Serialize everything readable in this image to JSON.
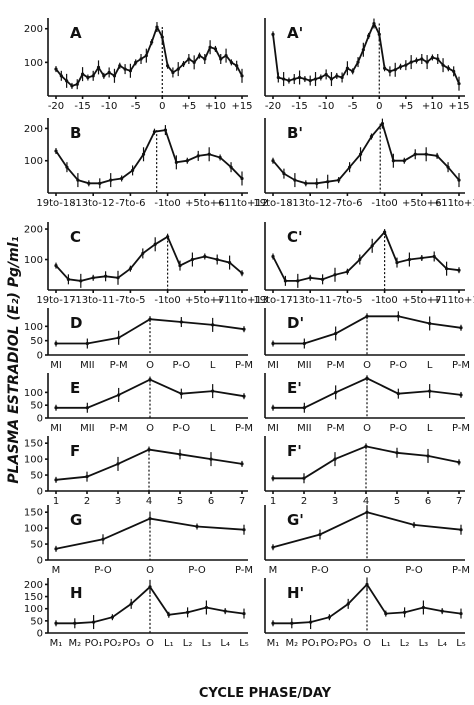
{
  "figure": {
    "ylabel": "PLASMA ESTRADIOL (E₂) Pg/ml₁",
    "xlabel": "CYCLE PHASE/DAY"
  },
  "chart_data": [
    {
      "type": "line",
      "panel": "A",
      "x": [
        -20,
        -19,
        -18,
        -17,
        -16,
        -15,
        -14,
        -13,
        -12,
        -11,
        -10,
        -9,
        -8,
        -7,
        -6,
        -5,
        -4,
        -3,
        -2,
        -1,
        0,
        1,
        2,
        3,
        4,
        5,
        6,
        7,
        8,
        9,
        10,
        11,
        12,
        13,
        14,
        15
      ],
      "values": [
        80,
        60,
        45,
        30,
        35,
        65,
        55,
        60,
        85,
        60,
        70,
        60,
        90,
        80,
        75,
        100,
        110,
        120,
        160,
        205,
        175,
        90,
        70,
        80,
        95,
        110,
        100,
        120,
        110,
        145,
        140,
        110,
        120,
        100,
        90,
        60
      ],
      "xticks": [
        "-20",
        "-15",
        "-10",
        "-5",
        "0",
        "+5",
        "+10",
        "+15"
      ],
      "yticks": [
        "100",
        "200"
      ],
      "ylim": [
        0,
        220
      ],
      "xmark": 0
    },
    {
      "type": "line",
      "panel": "A'",
      "x": [
        -20,
        -19,
        -18,
        -17,
        -16,
        -15,
        -14,
        -13,
        -12,
        -11,
        -10,
        -9,
        -8,
        -7,
        -6,
        -5,
        -4,
        -3,
        -2,
        -1,
        0,
        1,
        2,
        3,
        4,
        5,
        6,
        7,
        8,
        9,
        10,
        11,
        12,
        13,
        14,
        15
      ],
      "values": [
        200,
        60,
        55,
        50,
        55,
        60,
        55,
        50,
        55,
        60,
        70,
        55,
        65,
        60,
        90,
        80,
        110,
        150,
        195,
        235,
        200,
        90,
        80,
        85,
        95,
        100,
        110,
        115,
        120,
        110,
        125,
        120,
        100,
        90,
        80,
        40
      ],
      "xticks": [
        "-20",
        "-15",
        "-10",
        "-5",
        "0",
        "+5",
        "+10",
        "+15"
      ],
      "yticks": [],
      "ylim": [
        0,
        240
      ],
      "xmark": 0
    },
    {
      "type": "line",
      "panel": "B",
      "x": [
        0,
        1,
        2,
        3,
        4,
        5,
        6,
        7,
        8,
        9,
        10,
        11,
        12,
        13,
        14,
        15,
        16,
        17
      ],
      "values": [
        130,
        80,
        40,
        30,
        30,
        40,
        45,
        70,
        120,
        190,
        195,
        95,
        100,
        115,
        120,
        110,
        80,
        45
      ],
      "xticks": [
        "19to-18",
        "-13to-12",
        "-7to-6",
        "-1to0",
        "+5to+6",
        "+11to+12"
      ],
      "yticks": [
        "100",
        "200"
      ],
      "ylim": [
        0,
        220
      ],
      "xmark": 9.2
    },
    {
      "type": "line",
      "panel": "B'",
      "x": [
        0,
        1,
        2,
        3,
        4,
        5,
        6,
        7,
        8,
        9,
        10,
        11,
        12,
        13,
        14,
        15,
        16,
        17
      ],
      "values": [
        100,
        60,
        40,
        30,
        30,
        35,
        40,
        80,
        120,
        175,
        215,
        100,
        100,
        120,
        120,
        115,
        80,
        40
      ],
      "xticks": [
        "19to-18",
        "-13to-12",
        "-7to-6",
        "-1to0",
        "+5to+6",
        "+11to+12"
      ],
      "yticks": [],
      "ylim": [
        0,
        220
      ],
      "xmark": 9.8
    },
    {
      "type": "line",
      "panel": "C",
      "x": [
        0,
        1,
        2,
        3,
        4,
        5,
        6,
        7,
        8,
        9,
        10,
        11,
        12,
        13,
        14,
        15
      ],
      "values": [
        80,
        35,
        30,
        40,
        45,
        40,
        70,
        120,
        150,
        175,
        80,
        100,
        110,
        100,
        90,
        55
      ],
      "xticks": [
        "19to-17",
        "-13to-11",
        "-7to-5",
        "-1to0",
        "+5to+7",
        "+11to+13"
      ],
      "yticks": [
        "100",
        "200"
      ],
      "ylim": [
        0,
        210
      ],
      "xmark": 9
    },
    {
      "type": "line",
      "panel": "C'",
      "x": [
        0,
        1,
        2,
        3,
        4,
        5,
        6,
        7,
        8,
        9,
        10,
        11,
        12,
        13,
        14,
        15
      ],
      "values": [
        110,
        30,
        30,
        40,
        35,
        50,
        60,
        100,
        145,
        190,
        90,
        100,
        105,
        110,
        70,
        65
      ],
      "xticks": [
        "19to-17",
        "-13to-11",
        "-7to-5",
        "-1to0",
        "+5to+7",
        "+11to+13"
      ],
      "yticks": [],
      "ylim": [
        0,
        210
      ],
      "xmark": 9
    },
    {
      "type": "line",
      "panel": "D",
      "categories": [
        "MI",
        "MII",
        "P-M",
        "O",
        "P-O",
        "L",
        "P-M"
      ],
      "values": [
        40,
        40,
        60,
        125,
        115,
        105,
        90
      ],
      "yticks": [
        "0",
        "50",
        "100"
      ],
      "ylim": [
        0,
        150
      ],
      "xmark": 3
    },
    {
      "type": "line",
      "panel": "D'",
      "categories": [
        "MI",
        "MII",
        "P-M",
        "O",
        "P-O",
        "L",
        "P-M"
      ],
      "values": [
        40,
        40,
        75,
        135,
        135,
        110,
        95
      ],
      "yticks": [],
      "ylim": [
        0,
        150
      ],
      "xmark": 3
    },
    {
      "type": "line",
      "panel": "E",
      "categories": [
        "MI",
        "MII",
        "P-M",
        "O",
        "P-O",
        "L",
        "P-M"
      ],
      "values": [
        40,
        40,
        90,
        150,
        95,
        105,
        85
      ],
      "yticks": [
        "0",
        "50",
        "100"
      ],
      "ylim": [
        0,
        160
      ],
      "xmark": 3
    },
    {
      "type": "line",
      "panel": "E'",
      "categories": [
        "MI",
        "MII",
        "P-M",
        "O",
        "P-O",
        "L",
        "P-M"
      ],
      "values": [
        40,
        40,
        100,
        155,
        95,
        105,
        90
      ],
      "yticks": [],
      "ylim": [
        0,
        160
      ],
      "xmark": 3
    },
    {
      "type": "line",
      "panel": "F",
      "x": [
        1,
        2,
        3,
        4,
        5,
        6,
        7
      ],
      "values": [
        35,
        45,
        85,
        130,
        115,
        100,
        85
      ],
      "xticks": [
        "1",
        "2",
        "3",
        "4",
        "5",
        "6",
        "7"
      ],
      "yticks": [
        "0",
        "50",
        "100",
        "150"
      ],
      "ylim": [
        0,
        160
      ],
      "xmark": 4
    },
    {
      "type": "line",
      "panel": "F'",
      "x": [
        1,
        2,
        3,
        4,
        5,
        6,
        7
      ],
      "values": [
        40,
        40,
        100,
        140,
        120,
        110,
        90
      ],
      "xticks": [
        "1",
        "2",
        "3",
        "4",
        "5",
        "6",
        "7"
      ],
      "yticks": [],
      "ylim": [
        0,
        160
      ],
      "xmark": 4
    },
    {
      "type": "line",
      "panel": "G",
      "categories": [
        "M",
        "P-O",
        "O",
        "P-O",
        "P-M"
      ],
      "values": [
        35,
        65,
        130,
        105,
        95
      ],
      "yticks": [
        "0",
        "50",
        "100",
        "150"
      ],
      "ylim": [
        0,
        160
      ],
      "xmark": 2
    },
    {
      "type": "line",
      "panel": "G'",
      "categories": [
        "M",
        "P-O",
        "O",
        "P-O",
        "P-M"
      ],
      "values": [
        40,
        80,
        150,
        110,
        95
      ],
      "yticks": [],
      "ylim": [
        0,
        160
      ],
      "xmark": 2
    },
    {
      "type": "line",
      "panel": "H",
      "categories": [
        "M₁",
        "M₂",
        "PO₁",
        "PO₂",
        "PO₃",
        "O",
        "L₁",
        "L₂",
        "L₃",
        "L₄",
        "L₅"
      ],
      "values": [
        40,
        40,
        45,
        65,
        120,
        190,
        75,
        85,
        105,
        90,
        80
      ],
      "yticks": [
        "0",
        "50",
        "100",
        "150",
        "200"
      ],
      "ylim": [
        0,
        210
      ],
      "xmark": 5
    },
    {
      "type": "line",
      "panel": "H'",
      "categories": [
        "M₁",
        "M₂",
        "PO₁",
        "PO₂",
        "PO₃",
        "O",
        "L₁",
        "L₂",
        "L₃",
        "L₄",
        "L₅"
      ],
      "values": [
        40,
        40,
        45,
        65,
        120,
        200,
        80,
        85,
        105,
        90,
        80
      ],
      "yticks": [],
      "ylim": [
        0,
        210
      ],
      "xmark": 5
    }
  ]
}
